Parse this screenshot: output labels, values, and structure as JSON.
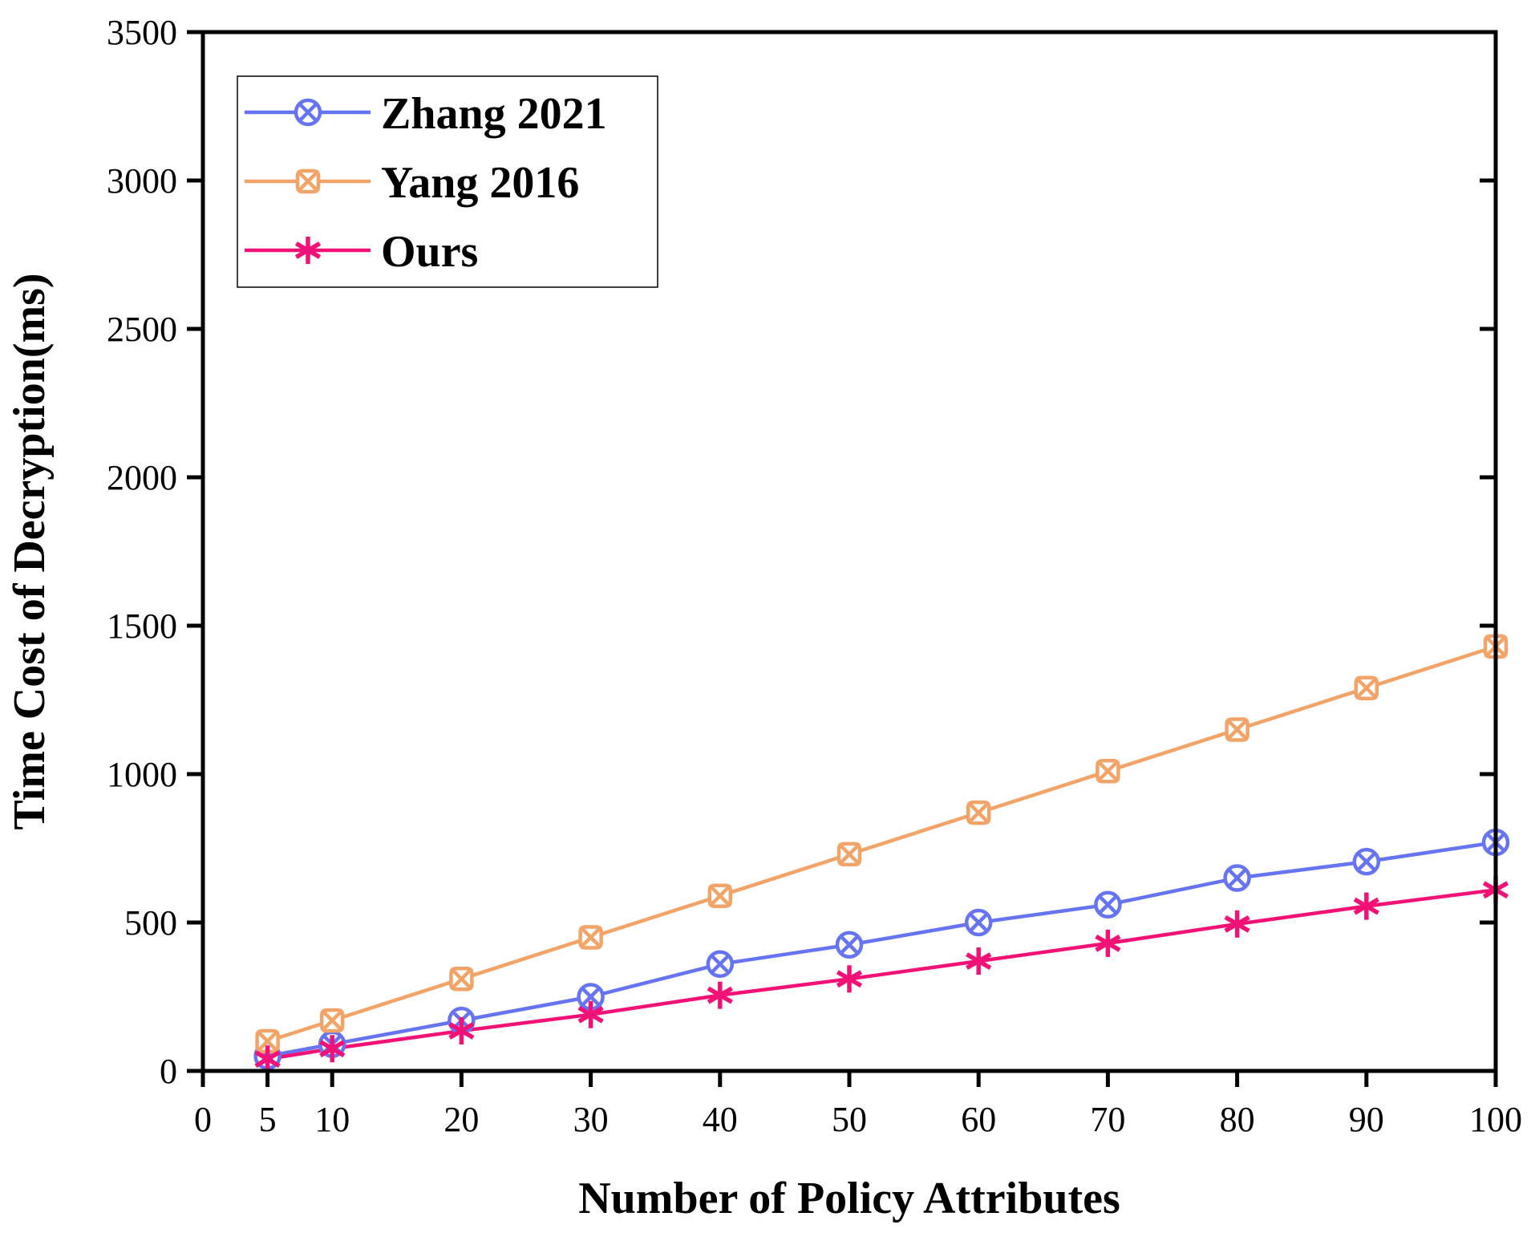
{
  "chart_data": {
    "type": "line",
    "title": "",
    "xlabel": "Number of Policy Attributes",
    "ylabel": "Time Cost of Decryption(ms)",
    "xlim": [
      0,
      100
    ],
    "ylim": [
      0,
      3500
    ],
    "x_ticks": [
      0,
      5,
      10,
      20,
      30,
      40,
      50,
      60,
      70,
      80,
      90,
      100
    ],
    "y_ticks": [
      0,
      500,
      1000,
      1500,
      2000,
      2500,
      3000,
      3500
    ],
    "x": [
      5,
      10,
      20,
      30,
      40,
      50,
      60,
      70,
      80,
      90,
      100
    ],
    "legend_position": "top-left",
    "series": [
      {
        "name": "Zhang 2021",
        "color": "#6674f2",
        "marker": "circle-x",
        "values": [
          50,
          90,
          170,
          250,
          360,
          425,
          500,
          560,
          650,
          705,
          770
        ]
      },
      {
        "name": "Yang 2016",
        "color": "#f2a367",
        "marker": "square-x",
        "values": [
          100,
          170,
          310,
          450,
          590,
          730,
          870,
          1010,
          1150,
          1290,
          1430
        ]
      },
      {
        "name": "Ours",
        "color": "#f21277",
        "marker": "asterisk",
        "values": [
          40,
          75,
          135,
          190,
          255,
          310,
          370,
          430,
          495,
          555,
          610
        ]
      }
    ]
  }
}
